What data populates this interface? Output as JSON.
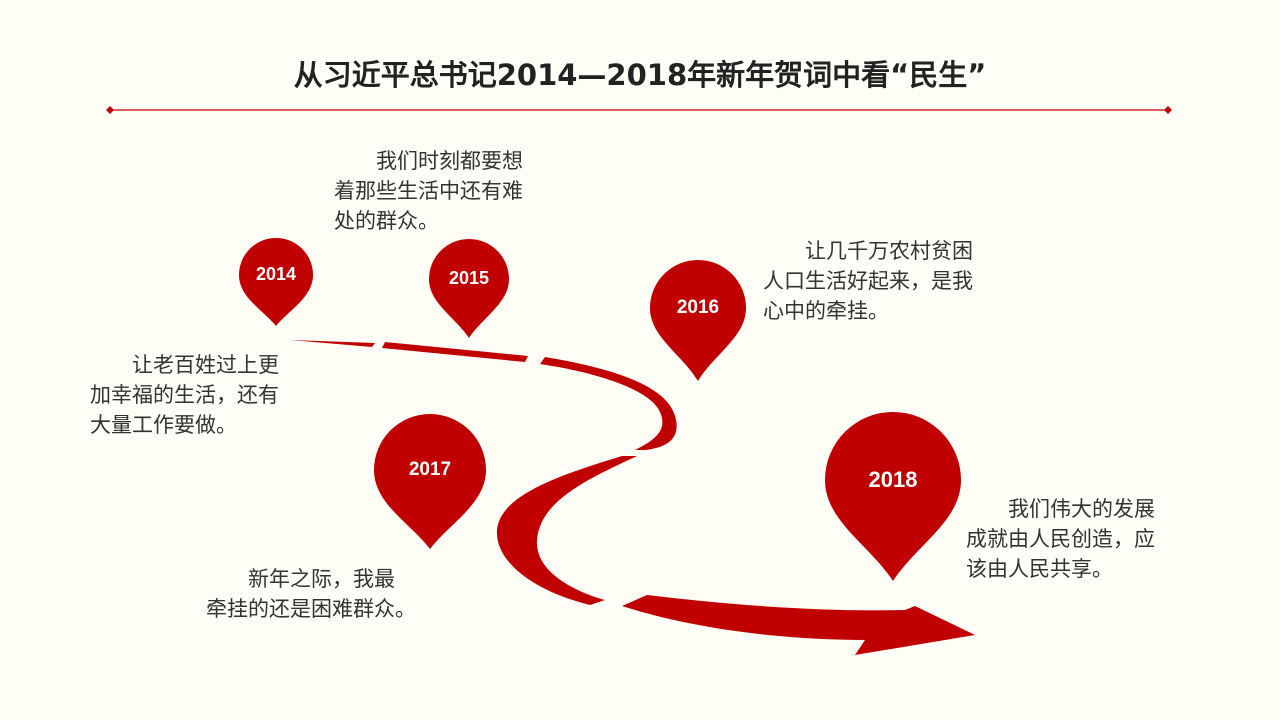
{
  "title": "从习近平总书记2014—2018年新年贺词中看“民生”",
  "accent_color": "#c00000",
  "milestones": [
    {
      "year": "2014",
      "quote": "　　让老百姓过上更\n加幸福的生活，还有\n大量工作要做。"
    },
    {
      "year": "2015",
      "quote": "　　我们时刻都要想\n着那些生活中还有难\n处的群众。"
    },
    {
      "year": "2016",
      "quote": "　　让几千万农村贫困\n人口生活好起来，是我\n心中的牵挂。"
    },
    {
      "year": "2017",
      "quote": "　　新年之际，我最\n牵挂的还是困难群众。"
    },
    {
      "year": "2018",
      "quote": "　　我们伟大的发展\n成就由人民创造，应\n该由人民共享。"
    }
  ]
}
